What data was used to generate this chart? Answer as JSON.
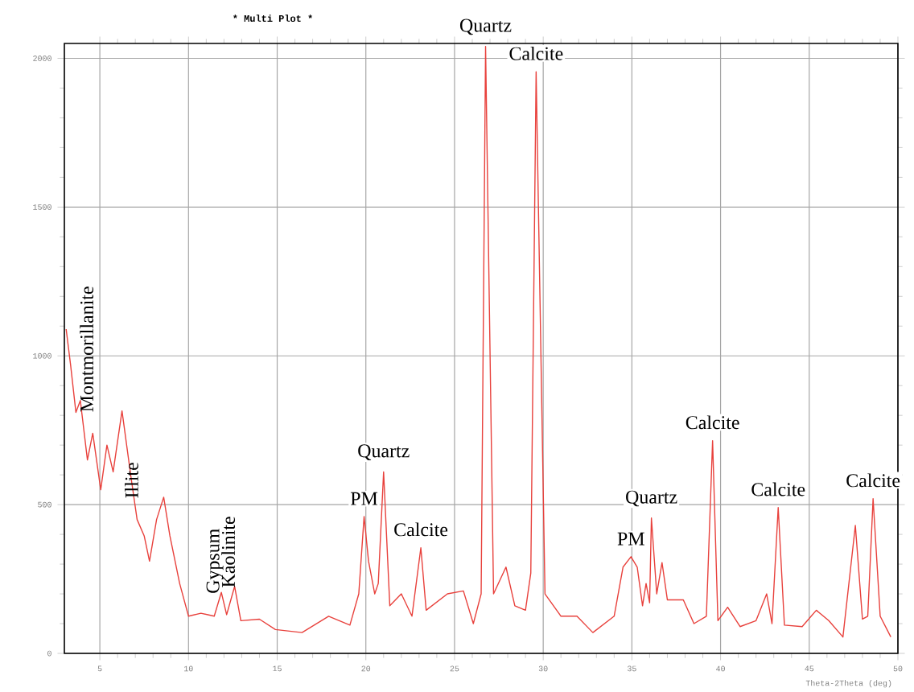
{
  "chart_data": {
    "type": "line",
    "title": "*** Multi Plot ***",
    "xlabel": "Theta-2Theta (deg)",
    "x": [
      3.1,
      3.35,
      3.65,
      3.9,
      4.3,
      4.6,
      5.05,
      5.4,
      5.75,
      6.25,
      6.75,
      7.1,
      7.5,
      7.8,
      8.2,
      8.6,
      8.95,
      9.5,
      10.0,
      10.7,
      11.45,
      11.85,
      12.15,
      12.6,
      12.95,
      14,
      14.9,
      16.4,
      17.9,
      19.1,
      19.6,
      19.9,
      20.15,
      20.5,
      20.7,
      21.0,
      21.35,
      22,
      22.6,
      23.1,
      23.4,
      24.6,
      25.5,
      26.06,
      26.5,
      26.75,
      27.2,
      27.9,
      28.4,
      29,
      29.3,
      29.6,
      30.1,
      31,
      31.9,
      32.8,
      34,
      34.5,
      34.95,
      35.3,
      35.6,
      35.8,
      36,
      36.1,
      36.4,
      36.7,
      37,
      37.9,
      38.5,
      39.2,
      39.55,
      39.85,
      40.4,
      41.1,
      42,
      42.6,
      42.9,
      43.25,
      43.6,
      44.6,
      45.4,
      46.1,
      46.9,
      47.6,
      48.0,
      48.3,
      48.6,
      49,
      49.6
    ],
    "values": [
      1090,
      970,
      810,
      850,
      650,
      740,
      550,
      700,
      610,
      815,
      595,
      450,
      395,
      310,
      450,
      525,
      395,
      235,
      125,
      135,
      125,
      205,
      130,
      225,
      110,
      115,
      80,
      70,
      125,
      95,
      200,
      460,
      310,
      200,
      235,
      610,
      160,
      200,
      125,
      355,
      145,
      200,
      210,
      100,
      200,
      2040,
      200,
      290,
      160,
      145,
      270,
      1955,
      200,
      125,
      125,
      70,
      125,
      290,
      325,
      290,
      160,
      235,
      170,
      455,
      200,
      305,
      180,
      180,
      100,
      125,
      715,
      110,
      155,
      90,
      110,
      200,
      100,
      490,
      95,
      90,
      145,
      110,
      55,
      430,
      115,
      125,
      520,
      125,
      55
    ],
    "color": "#e8413c",
    "xlim": [
      3,
      50
    ],
    "ylim": [
      0,
      2050
    ],
    "xticks": [
      5,
      10,
      15,
      20,
      25,
      30,
      35,
      40,
      45,
      50
    ],
    "yticks": [
      0,
      500,
      1000,
      1500,
      2000
    ],
    "grid": true,
    "marker": "none",
    "line_style": "solid",
    "annotations": [
      {
        "text": "Montmorillanite",
        "x": 6.25,
        "y": 815
      },
      {
        "text": "Illite",
        "x": 8.6,
        "y": 525
      },
      {
        "text": "Gypsum",
        "x": 11.85,
        "y": 205
      },
      {
        "text": "Kaolinite",
        "x": 12.6,
        "y": 225
      },
      {
        "text": "PM",
        "x": 19.9,
        "y": 460
      },
      {
        "text": "Quartz",
        "x": 21.0,
        "y": 610
      },
      {
        "text": "Calcite",
        "x": 23.1,
        "y": 355
      },
      {
        "text": "Quartz",
        "x": 26.75,
        "y": 2040
      },
      {
        "text": "Calcite",
        "x": 29.6,
        "y": 1955
      },
      {
        "text": "PM",
        "x": 34.95,
        "y": 325
      },
      {
        "text": "Quartz",
        "x": 36.1,
        "y": 455
      },
      {
        "text": "Calcite",
        "x": 39.55,
        "y": 715
      },
      {
        "text": "Calcite",
        "x": 43.25,
        "y": 490
      },
      {
        "text": "Calcite",
        "x": 48.6,
        "y": 520
      }
    ]
  }
}
